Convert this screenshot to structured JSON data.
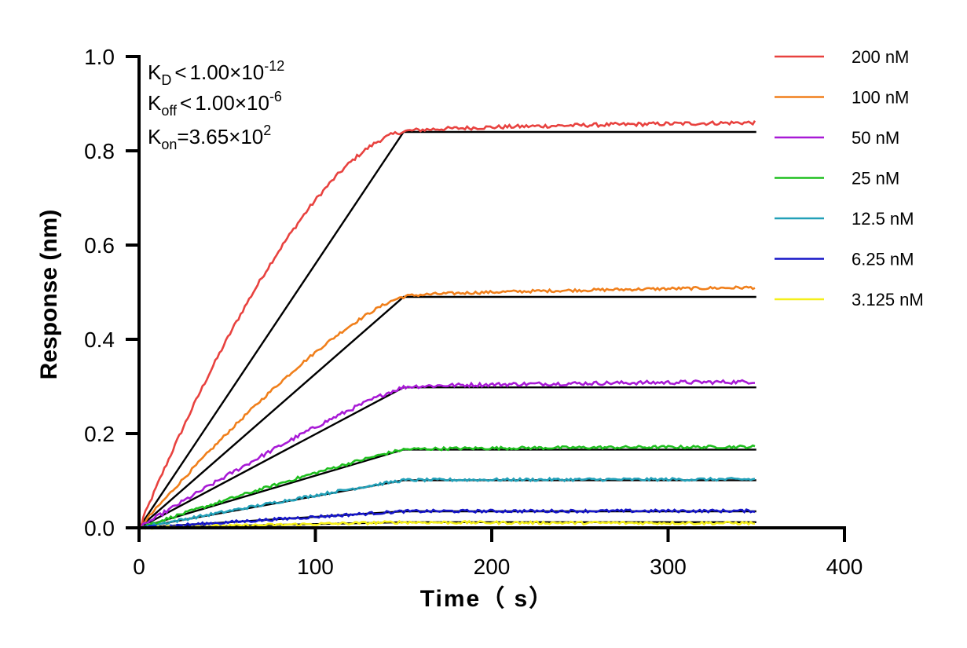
{
  "chart_data": {
    "type": "line",
    "xlabel": "Time（ s）",
    "ylabel": "Response (nm)",
    "xlim": [
      0,
      400
    ],
    "ylim": [
      0,
      1.0
    ],
    "xticks": [
      "0",
      "100",
      "200",
      "300",
      "400"
    ],
    "yticks": [
      "0.0",
      "0.2",
      "0.4",
      "0.6",
      "0.8",
      "1.0"
    ],
    "grid": false,
    "legend_position": "right",
    "kinetics": {
      "kd": {
        "label": "K",
        "sub": "D",
        "op": "<",
        "value": "1.00×10",
        "exp": "-12"
      },
      "koff": {
        "label": "K",
        "sub": "off",
        "op": "<",
        "value": "1.00×10",
        "exp": "-6"
      },
      "kon": {
        "label": "K",
        "sub": "on",
        "op": "=",
        "value": "3.65×10",
        "exp": "2"
      }
    },
    "association_end": 150,
    "x_end": 350,
    "series": [
      {
        "name": "200 nM",
        "color": "#e8423f",
        "plateau": 0.84,
        "final": 0.86,
        "curvature": 1.6,
        "noise": 0.004
      },
      {
        "name": "100 nM",
        "color": "#f07f1b",
        "plateau": 0.49,
        "final": 0.51,
        "curvature": 1.3,
        "noise": 0.003
      },
      {
        "name": "50 nM",
        "color": "#a81ad6",
        "plateau": 0.298,
        "final": 0.31,
        "curvature": 1.15,
        "noise": 0.004
      },
      {
        "name": "25 nM",
        "color": "#1fbf1f",
        "plateau": 0.166,
        "final": 0.172,
        "curvature": 1.1,
        "noise": 0.003
      },
      {
        "name": "12.5 nM",
        "color": "#22a0b8",
        "plateau": 0.101,
        "final": 0.103,
        "curvature": 1.05,
        "noise": 0.003
      },
      {
        "name": "6.25 nM",
        "color": "#1616c8",
        "plateau": 0.035,
        "final": 0.036,
        "curvature": 1.0,
        "noise": 0.003
      },
      {
        "name": "3.125 nM",
        "color": "#f5ef1a",
        "plateau": 0.012,
        "final": 0.01,
        "curvature": 1.0,
        "noise": 0.003
      }
    ]
  }
}
